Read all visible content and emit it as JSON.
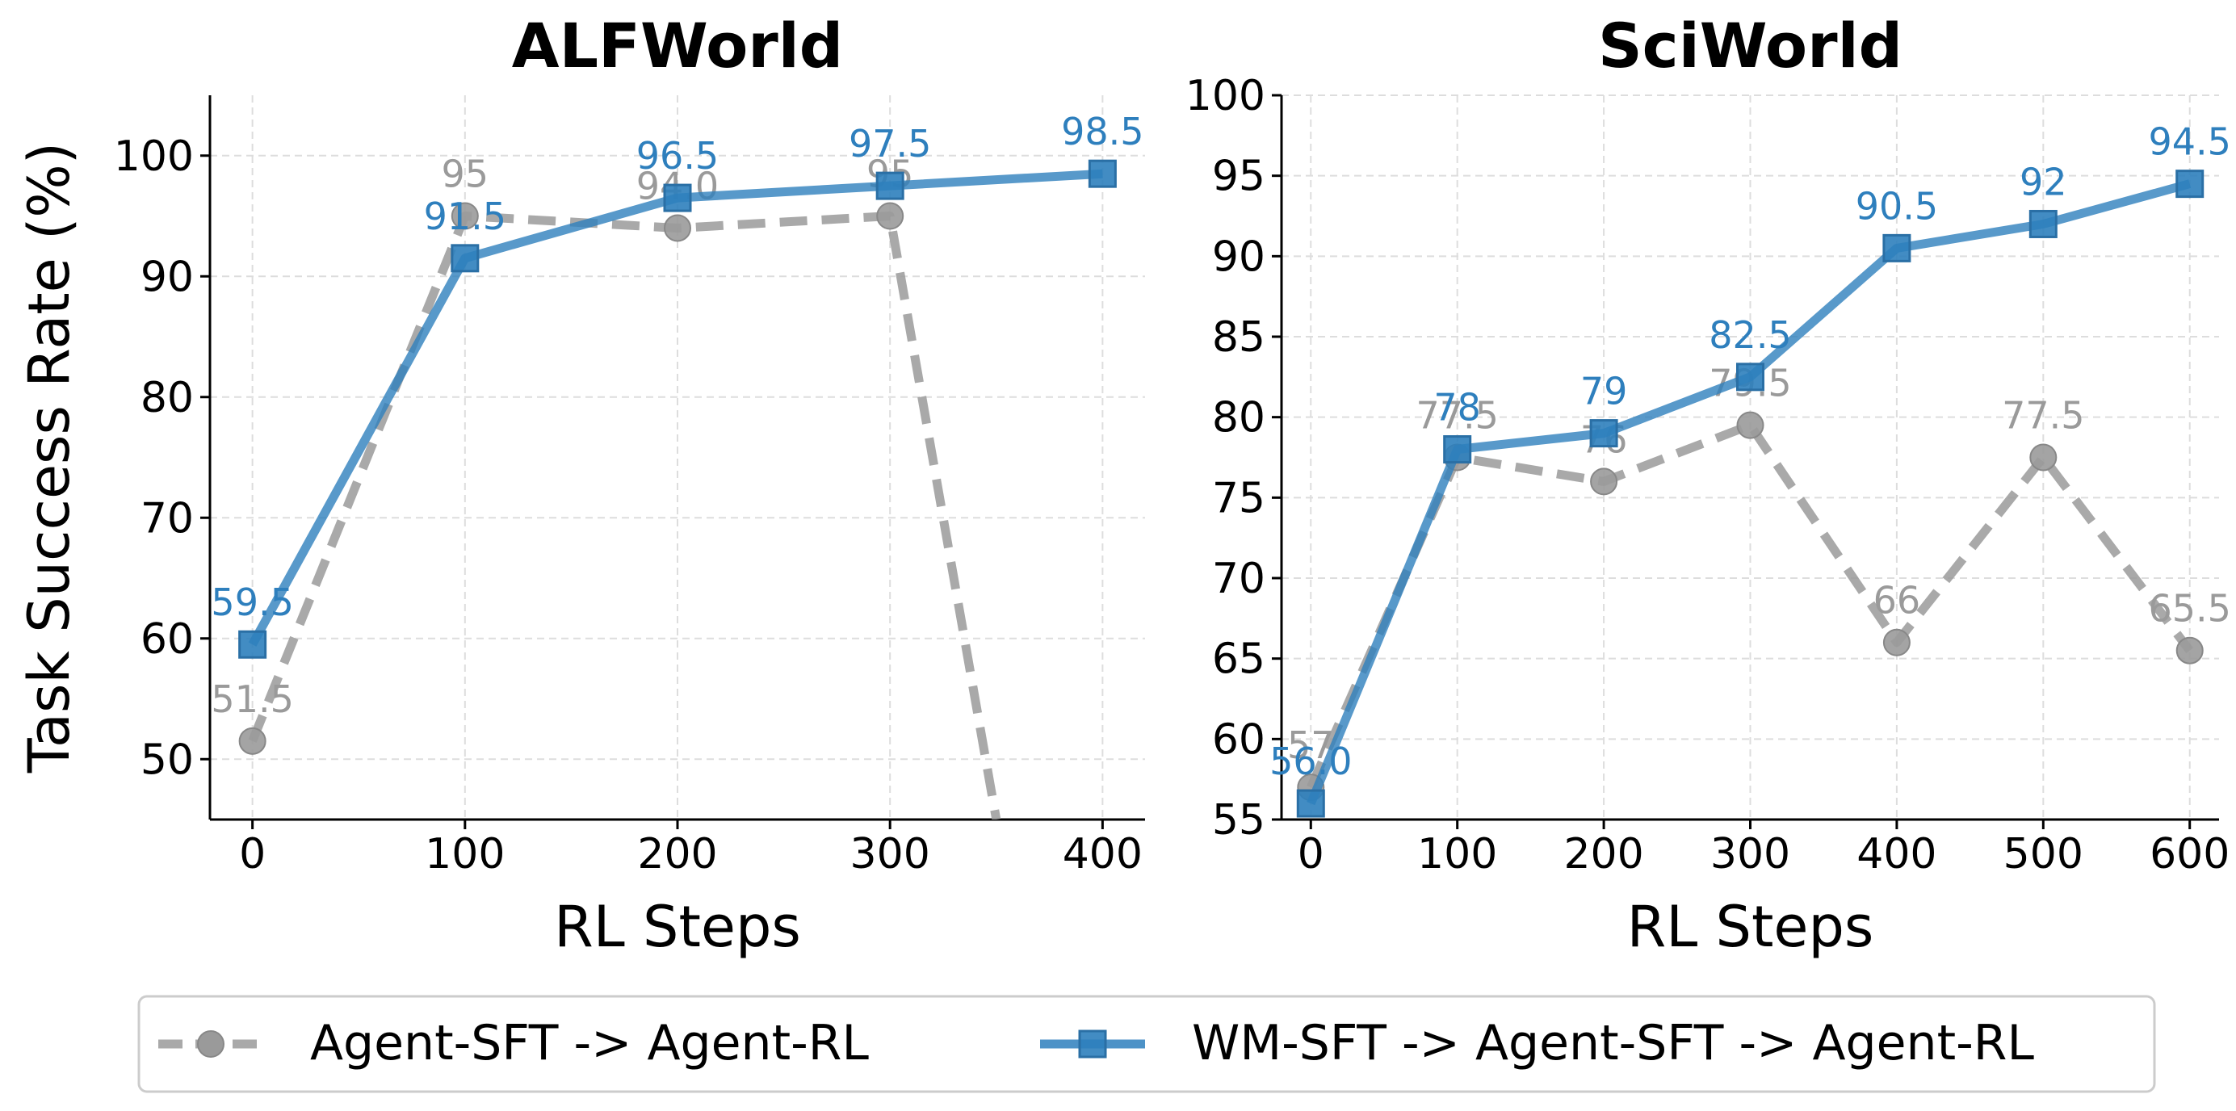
{
  "colors": {
    "gray": "#9a9a9a",
    "blue": "#2e7fbd",
    "axis": "#000000",
    "grid": "#dddddd"
  },
  "legend": {
    "placement": "bottom-center",
    "items": [
      {
        "label": "Agent-SFT -> Agent-RL",
        "color": "#9a9a9a",
        "marker": "circle",
        "style": "dashed"
      },
      {
        "label": "WM-SFT -> Agent-SFT -> Agent-RL",
        "color": "#2e7fbd",
        "marker": "square",
        "style": "solid"
      }
    ]
  },
  "chart_data": [
    {
      "type": "line",
      "title": "ALFWorld",
      "xlabel": "RL Steps",
      "ylabel": "Task Success Rate (%)",
      "xlim": [
        -20,
        420
      ],
      "ylim": [
        45,
        105
      ],
      "xticks": [
        "0",
        "100",
        "200",
        "300",
        "400"
      ],
      "yticks": [
        "50",
        "60",
        "70",
        "80",
        "90",
        "100"
      ],
      "grid": true,
      "series": [
        {
          "name": "Agent-SFT -> Agent-RL",
          "x": [
            0,
            100,
            200,
            300,
            350
          ],
          "y": [
            51.5,
            95,
            94.0,
            95,
            45
          ],
          "markers": [
            true,
            true,
            true,
            true,
            false
          ],
          "labels": [
            "51.5",
            "95",
            "94.0",
            "95",
            ""
          ]
        },
        {
          "name": "WM-SFT -> Agent-SFT -> Agent-RL",
          "x": [
            0,
            100,
            200,
            300,
            400
          ],
          "y": [
            59.5,
            91.5,
            96.5,
            97.5,
            98.5
          ],
          "markers": [
            true,
            true,
            true,
            true,
            true
          ],
          "labels": [
            "59.5",
            "91.5",
            "96.5",
            "97.5",
            "98.5"
          ]
        }
      ]
    },
    {
      "type": "line",
      "title": "SciWorld",
      "xlabel": "RL Steps",
      "ylabel": "",
      "xlim": [
        -20,
        620
      ],
      "ylim": [
        55,
        100
      ],
      "xticks": [
        "0",
        "100",
        "200",
        "300",
        "400",
        "500",
        "600"
      ],
      "yticks": [
        "55",
        "60",
        "65",
        "70",
        "75",
        "80",
        "85",
        "90",
        "95",
        "100"
      ],
      "grid": true,
      "series": [
        {
          "name": "Agent-SFT -> Agent-RL",
          "x": [
            0,
            100,
            200,
            300,
            400,
            500,
            600
          ],
          "y": [
            57,
            77.5,
            76,
            79.5,
            66,
            77.5,
            65.5
          ],
          "markers": [
            true,
            true,
            true,
            true,
            true,
            true,
            true
          ],
          "labels": [
            "57",
            "77.5",
            "76",
            "79.5",
            "66",
            "77.5",
            "65.5"
          ]
        },
        {
          "name": "WM-SFT -> Agent-SFT -> Agent-RL",
          "x": [
            0,
            100,
            200,
            300,
            400,
            500,
            600
          ],
          "y": [
            56.0,
            78,
            79,
            82.5,
            90.5,
            92,
            94.5
          ],
          "markers": [
            true,
            true,
            true,
            true,
            true,
            true,
            true
          ],
          "labels": [
            "56.0",
            "78",
            "79",
            "82.5",
            "90.5",
            "92",
            "94.5"
          ]
        }
      ]
    }
  ]
}
